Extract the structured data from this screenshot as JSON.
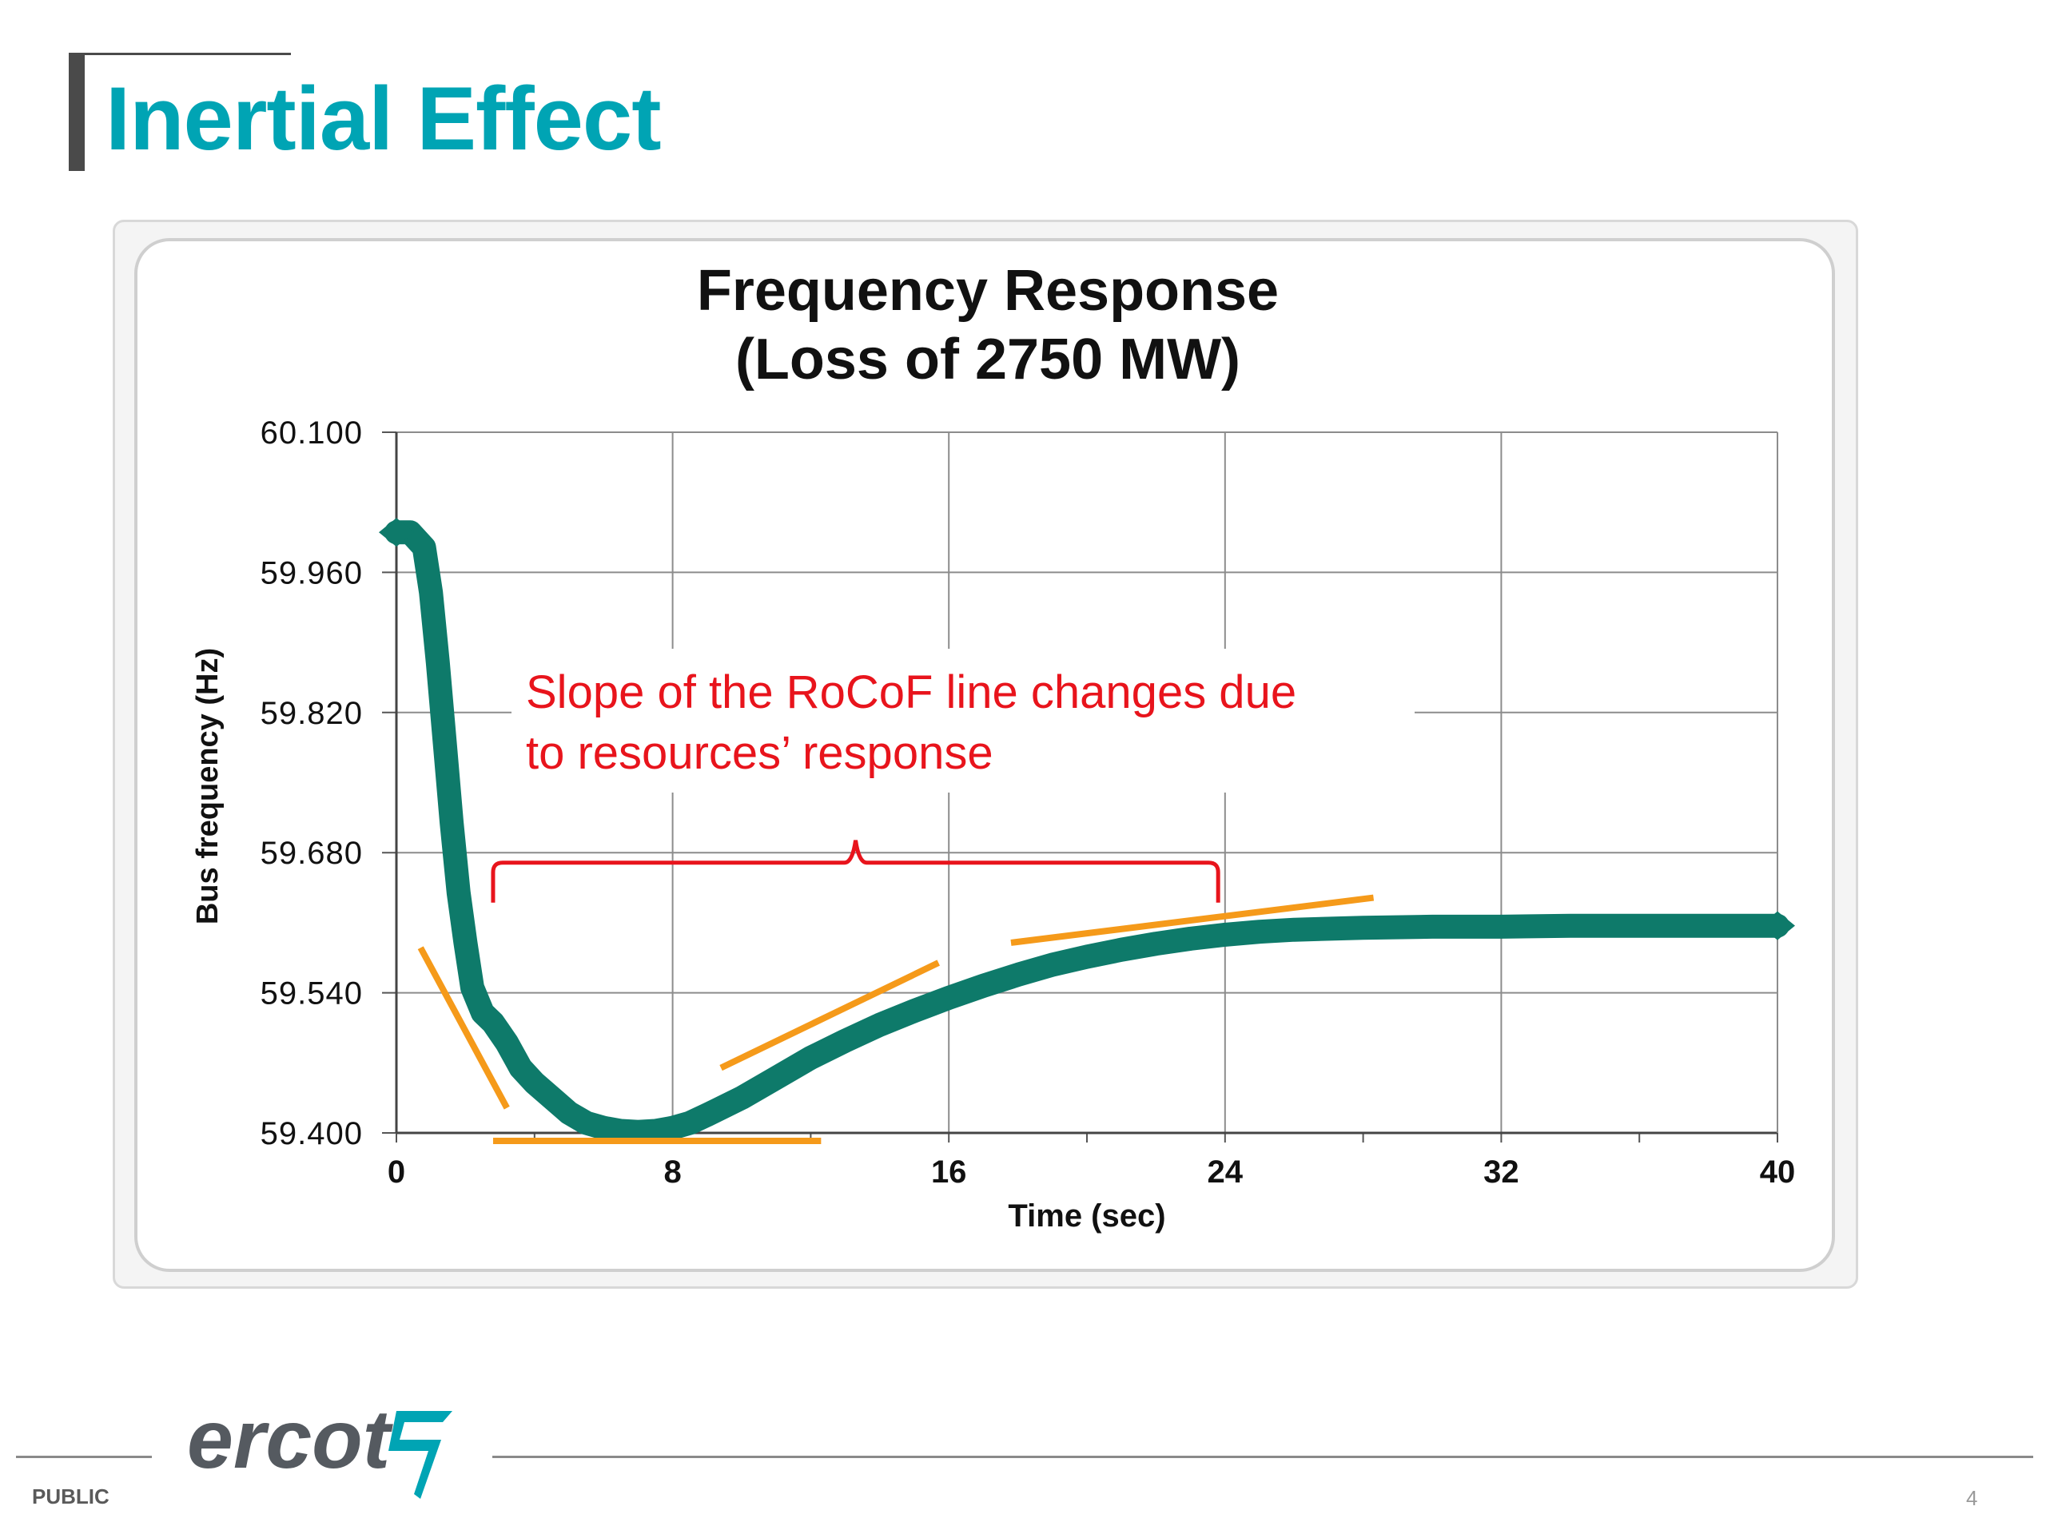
{
  "slide": {
    "title": "Inertial Effect",
    "classification": "PUBLIC",
    "page_number": "4",
    "logo_text": "ercot"
  },
  "chart_data": {
    "type": "line",
    "title_line1": "Frequency Response",
    "title_line2": "(Loss of 2750 MW)",
    "xlabel": "Time (sec)",
    "ylabel": "Bus frequency (Hz)",
    "xlim": [
      0,
      40
    ],
    "ylim": [
      59.4,
      60.1
    ],
    "xticks": [
      "0",
      "8",
      "16",
      "24",
      "32",
      "40"
    ],
    "yticks": [
      "60.100",
      "59.960",
      "59.820",
      "59.680",
      "59.540",
      "59.400"
    ],
    "grid": true,
    "series": [
      {
        "color": "#0e7a6a",
        "x": [
          0,
          0.4,
          0.8,
          1.0,
          1.2,
          1.4,
          1.6,
          1.8,
          2.0,
          2.2,
          2.5,
          2.8,
          3.2,
          3.6,
          4.0,
          4.5,
          5.0,
          5.5,
          6.0,
          6.5,
          7.0,
          7.5,
          8.0,
          8.5,
          9.0,
          10.0,
          11.0,
          12.0,
          13.0,
          14.0,
          15.0,
          16.0,
          17.0,
          18.0,
          19.0,
          20.0,
          21.0,
          22.0,
          23.0,
          24.0,
          25.0,
          26.0,
          28.0,
          30.0,
          32.0,
          34.0,
          36.0,
          38.0,
          40.0
        ],
        "y": [
          60.0,
          60.0,
          59.985,
          59.94,
          59.87,
          59.79,
          59.71,
          59.64,
          59.59,
          59.545,
          59.52,
          59.51,
          59.49,
          59.465,
          59.45,
          59.435,
          59.42,
          59.41,
          59.405,
          59.402,
          59.401,
          59.402,
          59.405,
          59.41,
          59.418,
          59.435,
          59.455,
          59.475,
          59.492,
          59.508,
          59.522,
          59.535,
          59.547,
          59.558,
          59.568,
          59.576,
          59.583,
          59.589,
          59.594,
          59.598,
          59.601,
          59.603,
          59.605,
          59.606,
          59.606,
          59.607,
          59.607,
          59.607,
          59.607
        ]
      }
    ],
    "tangent_lines": [
      {
        "x": [
          0.7,
          3.2
        ],
        "y": [
          59.585,
          59.425
        ]
      },
      {
        "x": [
          2.8,
          12.3
        ],
        "y": [
          59.392,
          59.392
        ]
      },
      {
        "x": [
          9.4,
          15.7
        ],
        "y": [
          59.465,
          59.57
        ]
      },
      {
        "x": [
          17.8,
          28.3
        ],
        "y": [
          59.59,
          59.635
        ]
      }
    ],
    "annotation": {
      "line1": "Slope of the RoCoF line changes due",
      "line2": "to resources’ response",
      "brace_x": [
        2.8,
        23.8
      ],
      "brace_y": 59.67
    },
    "colors": {
      "series": "#0e7a6a",
      "tangent": "#f59a1a",
      "annotation": "#e8141c"
    }
  }
}
